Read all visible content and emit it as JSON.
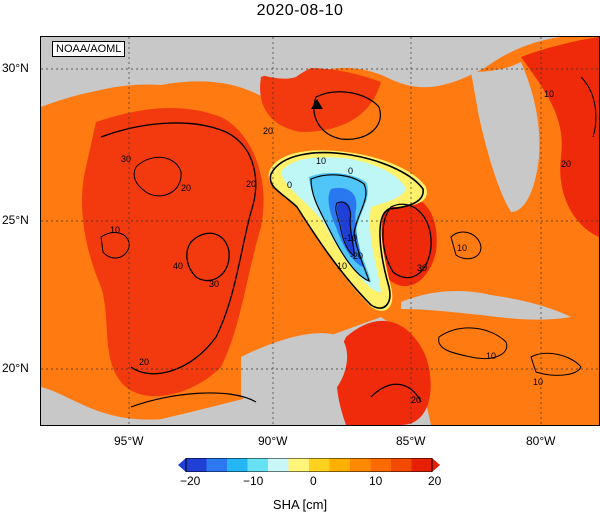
{
  "title": "2020-08-10",
  "credit": "NOAA/AOML",
  "lat_labels": [
    "30°N",
    "25°N",
    "20°N"
  ],
  "lon_labels": [
    "95°W",
    "90°W",
    "85°W",
    "80°W"
  ],
  "contour_labels": [
    "0",
    "10",
    "20",
    "30",
    "40",
    "-10",
    "-20"
  ],
  "colorbar": {
    "title": "SHA [cm]",
    "ticks": [
      "−20",
      "−10",
      "0",
      "10",
      "20"
    ],
    "colors": [
      "#1f3fd6",
      "#2b78f0",
      "#25b6f5",
      "#67e2f5",
      "#c9f7f7",
      "#fff57a",
      "#ffd21f",
      "#ffb000",
      "#ff8a00",
      "#ff6a00",
      "#f24a00",
      "#e62000"
    ]
  },
  "colors": {
    "land": "#c8c8c8",
    "ocean_base": "#ff7a10",
    "ocean_high": "#f03a10"
  }
}
